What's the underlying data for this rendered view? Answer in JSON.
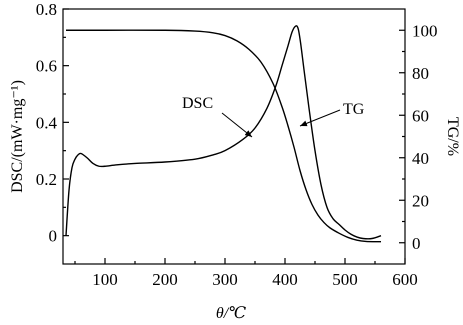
{
  "chart_data": {
    "type": "line",
    "xlabel": "θ/℃",
    "ylabel_left": "DSC/(mW·mg⁻¹)",
    "ylabel_right": "TG/%",
    "xlim": [
      30,
      600
    ],
    "ylim_left": [
      -0.1,
      0.8
    ],
    "ylim_right": [
      -10,
      110
    ],
    "x_ticks": [
      100,
      200,
      300,
      400,
      500,
      600
    ],
    "y_ticks_left": [
      0,
      0.2,
      0.4,
      0.6,
      0.8
    ],
    "y_ticks_right": [
      0,
      20,
      40,
      60,
      80,
      100
    ],
    "series": [
      {
        "name": "DSC",
        "axis": "left",
        "x": [
          35,
          40,
          45,
          50,
          55,
          60,
          70,
          80,
          90,
          100,
          120,
          150,
          200,
          250,
          280,
          300,
          330,
          350,
          370,
          385,
          395,
          405,
          412,
          418,
          422,
          426,
          432,
          440,
          450,
          460,
          470,
          480,
          490,
          500,
          510,
          520,
          530,
          545,
          560
        ],
        "y": [
          0.0,
          0.16,
          0.24,
          0.27,
          0.285,
          0.29,
          0.275,
          0.255,
          0.245,
          0.245,
          0.25,
          0.255,
          0.26,
          0.27,
          0.285,
          0.3,
          0.34,
          0.38,
          0.45,
          0.53,
          0.6,
          0.67,
          0.72,
          0.74,
          0.73,
          0.68,
          0.58,
          0.45,
          0.3,
          0.18,
          0.1,
          0.06,
          0.04,
          0.02,
          0.005,
          -0.005,
          -0.01,
          -0.01,
          0.0
        ]
      },
      {
        "name": "TG",
        "axis": "right",
        "x": [
          35,
          100,
          200,
          250,
          280,
          300,
          320,
          340,
          360,
          380,
          395,
          405,
          415,
          425,
          435,
          445,
          455,
          465,
          475,
          490,
          505,
          520,
          535,
          550,
          560
        ],
        "y": [
          100,
          100,
          100,
          99.6,
          98.8,
          97.5,
          95,
          91,
          85,
          75,
          64,
          55,
          45,
          34,
          25,
          18,
          13,
          9.5,
          7,
          4.5,
          2.5,
          1.2,
          0.6,
          0.5,
          0.5
        ]
      }
    ],
    "annotations": [
      "DSC",
      "TG"
    ]
  }
}
